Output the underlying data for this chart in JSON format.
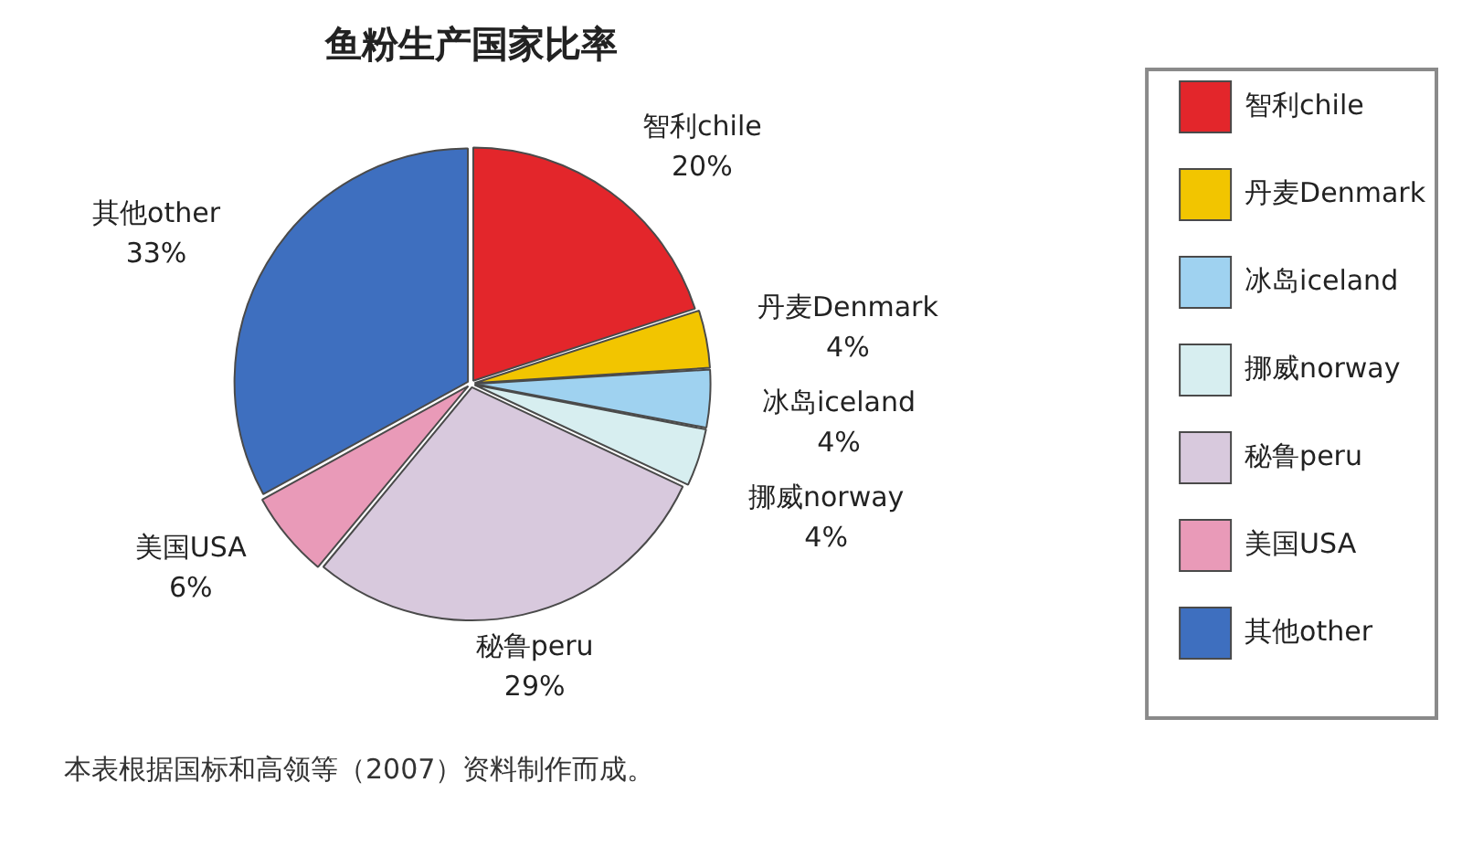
{
  "chart_data": {
    "type": "pie",
    "title": "鱼粉生产国家比率",
    "categories": [
      "智利chile",
      "丹麦Denmark",
      "冰岛iceland",
      "挪威norway",
      "秘鲁peru",
      "美国USA",
      "其他other"
    ],
    "values": [
      20,
      4,
      4,
      4,
      29,
      6,
      33
    ],
    "colors": [
      "#e3262b",
      "#f2c500",
      "#9fd2f0",
      "#d7eef0",
      "#d8c9dd",
      "#e99ab8",
      "#3e6fbf"
    ],
    "value_labels": [
      "20%",
      "4%",
      "4%",
      "4%",
      "29%",
      "6%",
      "33%"
    ],
    "legend": "right",
    "annotations": [
      "本表根据国标和高领等（2007）资料制作而成。"
    ]
  }
}
